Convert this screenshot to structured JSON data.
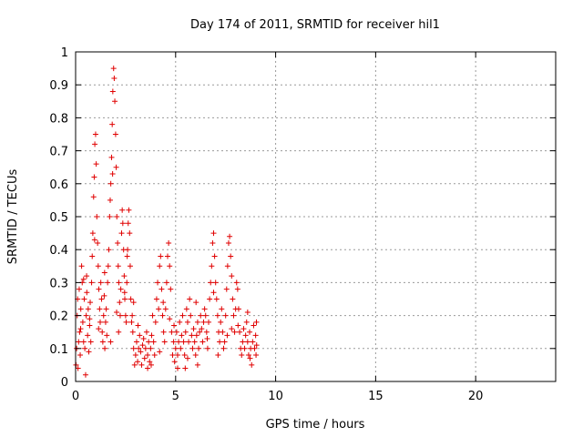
{
  "chart_data": {
    "type": "scatter",
    "title": "Day 174 of 2011, SRMTID for receiver hil1",
    "xlabel": "GPS time / hours",
    "ylabel": "SRMTID / TECUs",
    "xlim": [
      0,
      24
    ],
    "ylim": [
      0,
      1
    ],
    "grid": true,
    "xticks": [
      0,
      5,
      10,
      15,
      20
    ],
    "yticks": [
      0,
      0.1,
      0.2,
      0.3,
      0.4,
      0.5,
      0.6,
      0.7,
      0.8,
      0.9,
      1
    ],
    "marker": "+",
    "color": "#e00000",
    "series": [
      {
        "points": [
          [
            0.02,
            0.05
          ],
          [
            0.05,
            0.1
          ],
          [
            0.08,
            0.2
          ],
          [
            0.1,
            0.25
          ],
          [
            0.12,
            0.04
          ],
          [
            0.15,
            0.12
          ],
          [
            0.18,
            0.28
          ],
          [
            0.2,
            0.15
          ],
          [
            0.23,
            0.08
          ],
          [
            0.26,
            0.22
          ],
          [
            0.3,
            0.35
          ],
          [
            0.33,
            0.3
          ],
          [
            0.36,
            0.18
          ],
          [
            0.4,
            0.12
          ],
          [
            0.43,
            0.25
          ],
          [
            0.46,
            0.1
          ],
          [
            0.5,
            0.02
          ],
          [
            0.53,
            0.2
          ],
          [
            0.56,
            0.27
          ],
          [
            0.6,
            0.14
          ],
          [
            0.63,
            0.22
          ],
          [
            0.66,
            0.09
          ],
          [
            0.7,
            0.17
          ],
          [
            0.73,
            0.24
          ],
          [
            0.76,
            0.12
          ],
          [
            0.8,
            0.3
          ],
          [
            0.83,
            0.38
          ],
          [
            0.86,
            0.45
          ],
          [
            0.9,
            0.56
          ],
          [
            0.93,
            0.62
          ],
          [
            0.96,
            0.72
          ],
          [
            1.0,
            0.75
          ],
          [
            1.03,
            0.66
          ],
          [
            1.06,
            0.5
          ],
          [
            1.1,
            0.42
          ],
          [
            1.13,
            0.35
          ],
          [
            1.16,
            0.28
          ],
          [
            1.2,
            0.22
          ],
          [
            1.23,
            0.18
          ],
          [
            1.26,
            0.3
          ],
          [
            1.3,
            0.25
          ],
          [
            1.33,
            0.15
          ],
          [
            1.36,
            0.12
          ],
          [
            1.4,
            0.2
          ],
          [
            1.43,
            0.26
          ],
          [
            1.46,
            0.1
          ],
          [
            1.5,
            0.18
          ],
          [
            1.53,
            0.22
          ],
          [
            1.56,
            0.14
          ],
          [
            1.6,
            0.3
          ],
          [
            1.63,
            0.35
          ],
          [
            1.66,
            0.4
          ],
          [
            1.7,
            0.5
          ],
          [
            1.73,
            0.55
          ],
          [
            1.76,
            0.6
          ],
          [
            1.8,
            0.68
          ],
          [
            1.83,
            0.78
          ],
          [
            1.86,
            0.88
          ],
          [
            1.9,
            0.95
          ],
          [
            1.93,
            0.92
          ],
          [
            1.96,
            0.85
          ],
          [
            2.0,
            0.75
          ],
          [
            2.03,
            0.65
          ],
          [
            2.06,
            0.5
          ],
          [
            2.1,
            0.42
          ],
          [
            2.13,
            0.35
          ],
          [
            2.16,
            0.3
          ],
          [
            2.2,
            0.24
          ],
          [
            2.23,
            0.2
          ],
          [
            2.26,
            0.28
          ],
          [
            2.3,
            0.45
          ],
          [
            2.33,
            0.52
          ],
          [
            2.36,
            0.48
          ],
          [
            2.4,
            0.4
          ],
          [
            2.43,
            0.32
          ],
          [
            2.46,
            0.25
          ],
          [
            2.5,
            0.2
          ],
          [
            2.53,
            0.18
          ],
          [
            2.56,
            0.3
          ],
          [
            2.6,
            0.4
          ],
          [
            2.63,
            0.48
          ],
          [
            2.66,
            0.52
          ],
          [
            2.7,
            0.45
          ],
          [
            2.73,
            0.35
          ],
          [
            2.76,
            0.25
          ],
          [
            2.8,
            0.18
          ],
          [
            2.83,
            0.2
          ],
          [
            2.86,
            0.15
          ],
          [
            2.9,
            0.1
          ],
          [
            2.95,
            0.05
          ],
          [
            3.0,
            0.08
          ],
          [
            3.05,
            0.12
          ],
          [
            3.1,
            0.06
          ],
          [
            3.15,
            0.1
          ],
          [
            3.2,
            0.14
          ],
          [
            3.25,
            0.09
          ],
          [
            3.3,
            0.05
          ],
          [
            3.35,
            0.11
          ],
          [
            3.4,
            0.13
          ],
          [
            3.45,
            0.07
          ],
          [
            3.5,
            0.1
          ],
          [
            3.55,
            0.15
          ],
          [
            3.6,
            0.08
          ],
          [
            3.65,
            0.12
          ],
          [
            3.7,
            0.06
          ],
          [
            3.75,
            0.1
          ],
          [
            3.8,
            0.14
          ],
          [
            3.85,
            0.2
          ],
          [
            3.9,
            0.12
          ],
          [
            3.95,
            0.08
          ],
          [
            4.0,
            0.18
          ],
          [
            4.05,
            0.25
          ],
          [
            4.1,
            0.3
          ],
          [
            4.15,
            0.22
          ],
          [
            4.2,
            0.35
          ],
          [
            4.25,
            0.38
          ],
          [
            4.3,
            0.28
          ],
          [
            4.35,
            0.2
          ],
          [
            4.4,
            0.15
          ],
          [
            4.45,
            0.12
          ],
          [
            4.5,
            0.22
          ],
          [
            4.55,
            0.3
          ],
          [
            4.6,
            0.38
          ],
          [
            4.65,
            0.42
          ],
          [
            4.7,
            0.35
          ],
          [
            4.75,
            0.28
          ],
          [
            4.8,
            0.15
          ],
          [
            4.85,
            0.08
          ],
          [
            4.9,
            0.12
          ],
          [
            4.95,
            0.06
          ],
          [
            5.0,
            0.1
          ],
          [
            5.05,
            0.15
          ],
          [
            5.1,
            0.08
          ],
          [
            5.15,
            0.12
          ],
          [
            5.2,
            0.18
          ],
          [
            5.25,
            0.1
          ],
          [
            5.3,
            0.14
          ],
          [
            5.35,
            0.2
          ],
          [
            5.4,
            0.12
          ],
          [
            5.45,
            0.08
          ],
          [
            5.5,
            0.15
          ],
          [
            5.55,
            0.22
          ],
          [
            5.6,
            0.18
          ],
          [
            5.65,
            0.12
          ],
          [
            5.7,
            0.25
          ],
          [
            5.75,
            0.2
          ],
          [
            5.8,
            0.14
          ],
          [
            5.85,
            0.1
          ],
          [
            5.9,
            0.16
          ],
          [
            5.95,
            0.12
          ],
          [
            6.0,
            0.08
          ],
          [
            6.05,
            0.14
          ],
          [
            6.1,
            0.18
          ],
          [
            6.15,
            0.1
          ],
          [
            6.2,
            0.15
          ],
          [
            6.25,
            0.2
          ],
          [
            6.3,
            0.16
          ],
          [
            6.35,
            0.12
          ],
          [
            6.4,
            0.18
          ],
          [
            6.45,
            0.22
          ],
          [
            6.5,
            0.2
          ],
          [
            6.55,
            0.15
          ],
          [
            6.6,
            0.1
          ],
          [
            6.65,
            0.18
          ],
          [
            6.7,
            0.25
          ],
          [
            6.75,
            0.3
          ],
          [
            6.8,
            0.35
          ],
          [
            6.85,
            0.42
          ],
          [
            6.9,
            0.45
          ],
          [
            6.95,
            0.38
          ],
          [
            7.0,
            0.3
          ],
          [
            7.05,
            0.25
          ],
          [
            7.1,
            0.2
          ],
          [
            7.15,
            0.15
          ],
          [
            7.2,
            0.12
          ],
          [
            7.25,
            0.18
          ],
          [
            7.3,
            0.22
          ],
          [
            7.35,
            0.15
          ],
          [
            7.4,
            0.1
          ],
          [
            7.45,
            0.12
          ],
          [
            7.5,
            0.2
          ],
          [
            7.55,
            0.28
          ],
          [
            7.6,
            0.35
          ],
          [
            7.65,
            0.42
          ],
          [
            7.7,
            0.44
          ],
          [
            7.75,
            0.38
          ],
          [
            7.8,
            0.32
          ],
          [
            7.85,
            0.25
          ],
          [
            7.9,
            0.2
          ],
          [
            7.95,
            0.15
          ],
          [
            8.0,
            0.22
          ],
          [
            8.05,
            0.3
          ],
          [
            8.1,
            0.28
          ],
          [
            8.15,
            0.22
          ],
          [
            8.2,
            0.15
          ],
          [
            8.25,
            0.1
          ],
          [
            8.3,
            0.08
          ],
          [
            8.35,
            0.12
          ],
          [
            8.4,
            0.16
          ],
          [
            8.45,
            0.1
          ],
          [
            8.5,
            0.14
          ],
          [
            8.55,
            0.18
          ],
          [
            8.6,
            0.12
          ],
          [
            8.65,
            0.08
          ],
          [
            8.7,
            0.15
          ],
          [
            8.75,
            0.1
          ],
          [
            8.8,
            0.05
          ],
          [
            8.85,
            0.12
          ],
          [
            8.9,
            0.17
          ],
          [
            8.95,
            0.1
          ],
          [
            9.0,
            0.14
          ],
          [
            9.02,
            0.08
          ],
          [
            9.04,
            0.18
          ],
          [
            9.05,
            0.11
          ],
          [
            0.4,
            0.31
          ],
          [
            0.7,
            0.19
          ],
          [
            1.45,
            0.33
          ],
          [
            1.85,
            0.63
          ],
          [
            2.05,
            0.21
          ],
          [
            2.45,
            0.27
          ],
          [
            2.9,
            0.24
          ],
          [
            3.6,
            0.04
          ],
          [
            4.2,
            0.09
          ],
          [
            4.7,
            0.19
          ],
          [
            5.1,
            0.04
          ],
          [
            5.6,
            0.07
          ],
          [
            6.1,
            0.05
          ],
          [
            6.9,
            0.27
          ],
          [
            7.8,
            0.16
          ],
          [
            8.6,
            0.21
          ],
          [
            0.25,
            0.16
          ],
          [
            0.55,
            0.32
          ],
          [
            0.95,
            0.43
          ],
          [
            1.15,
            0.16
          ],
          [
            1.75,
            0.12
          ],
          [
            2.15,
            0.15
          ],
          [
            2.58,
            0.38
          ],
          [
            3.12,
            0.17
          ],
          [
            3.78,
            0.05
          ],
          [
            4.38,
            0.24
          ],
          [
            4.92,
            0.17
          ],
          [
            5.48,
            0.04
          ],
          [
            6.02,
            0.24
          ],
          [
            6.58,
            0.13
          ],
          [
            7.12,
            0.08
          ],
          [
            7.58,
            0.14
          ],
          [
            8.12,
            0.17
          ],
          [
            8.72,
            0.07
          ]
        ]
      }
    ]
  }
}
